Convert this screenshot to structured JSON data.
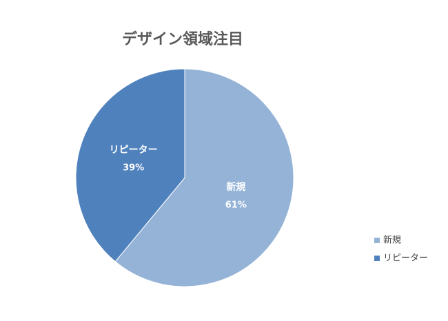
{
  "chart_data": {
    "type": "pie",
    "title": "デザイン領域注目",
    "categories": [
      "新規",
      "リピーター"
    ],
    "values": [
      61,
      39
    ],
    "value_labels": [
      "61%",
      "39%"
    ],
    "colors": [
      "#95b3d7",
      "#4f81bd"
    ],
    "legend": "right"
  }
}
